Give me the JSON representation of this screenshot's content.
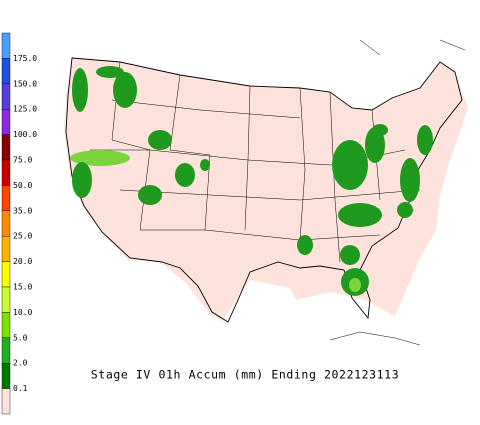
{
  "caption": "Stage IV 01h Accum (mm) Ending 2022123113",
  "legend": {
    "labels": [
      "175.0",
      "150.0",
      "125.0",
      "100.0",
      "75.0",
      "50.0",
      "35.0",
      "25.0",
      "20.0",
      "15.0",
      "10.0",
      "5.0",
      "2.0",
      "0.1"
    ]
  }
}
